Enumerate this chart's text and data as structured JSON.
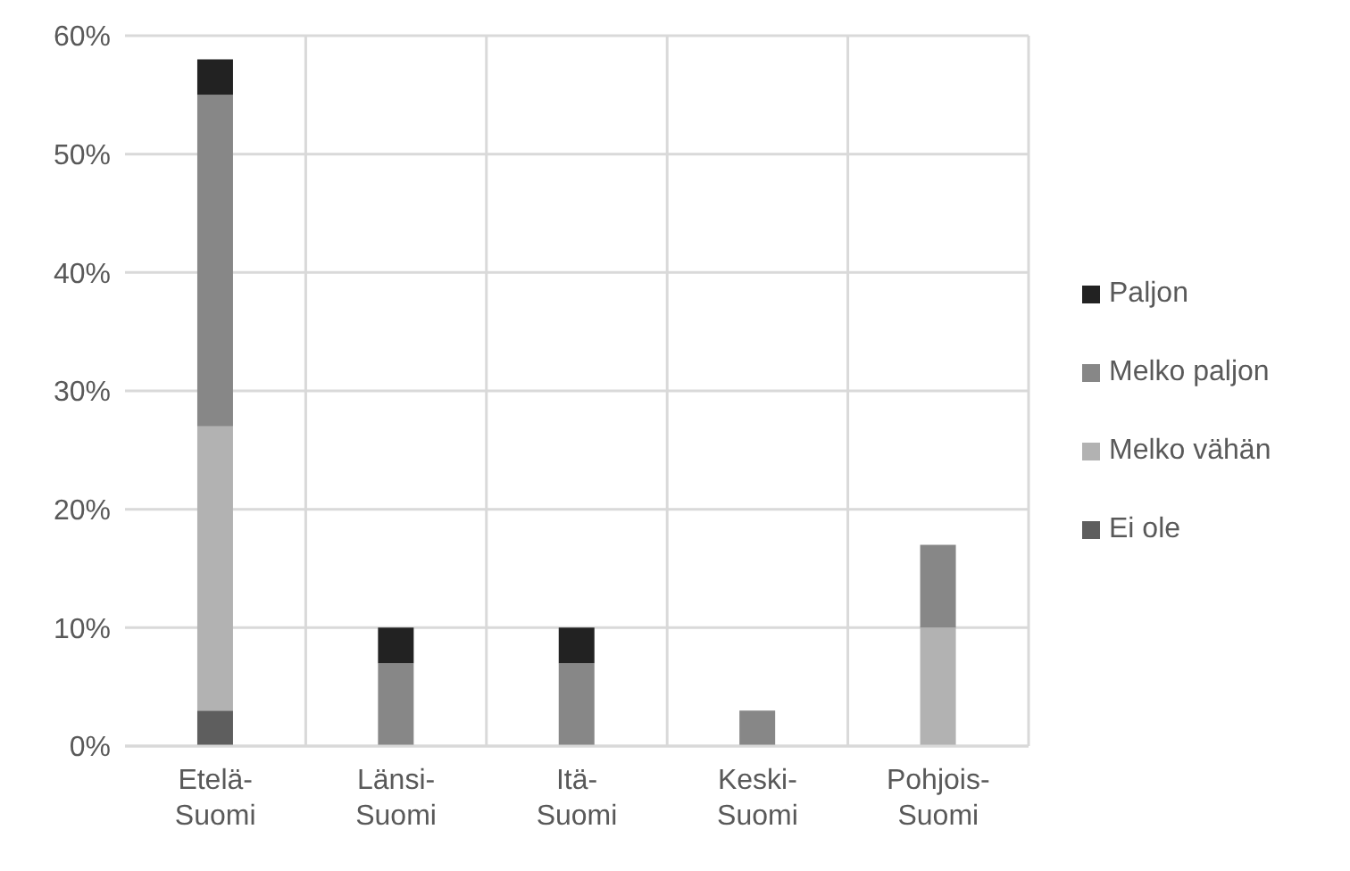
{
  "chart_data": {
    "type": "bar",
    "stacked": true,
    "categories": [
      "Etelä-Suomi",
      "Länsi-Suomi",
      "Itä-Suomi",
      "Keski-Suomi",
      "Pohjois-Suomi"
    ],
    "series": [
      {
        "name": "Ei ole",
        "color": "#5e5e5e",
        "values": [
          3,
          null,
          null,
          null,
          null
        ]
      },
      {
        "name": "Melko vähän",
        "color": "#b2b2b2",
        "values": [
          24,
          null,
          null,
          null,
          10
        ]
      },
      {
        "name": "Melko paljon",
        "color": "#878787",
        "values": [
          28,
          7,
          7,
          3,
          7
        ]
      },
      {
        "name": "Paljon",
        "color": "#222222",
        "values": [
          3,
          3,
          3,
          null,
          null
        ]
      }
    ],
    "ylim": [
      0,
      60
    ],
    "yticks": [
      {
        "value": 0,
        "label": "0%"
      },
      {
        "value": 10,
        "label": "10%"
      },
      {
        "value": 20,
        "label": "20%"
      },
      {
        "value": 30,
        "label": "30%"
      },
      {
        "value": 40,
        "label": "40%"
      },
      {
        "value": 50,
        "label": "50%"
      },
      {
        "value": 60,
        "label": "60%"
      }
    ],
    "grid": true,
    "legend": "right"
  }
}
